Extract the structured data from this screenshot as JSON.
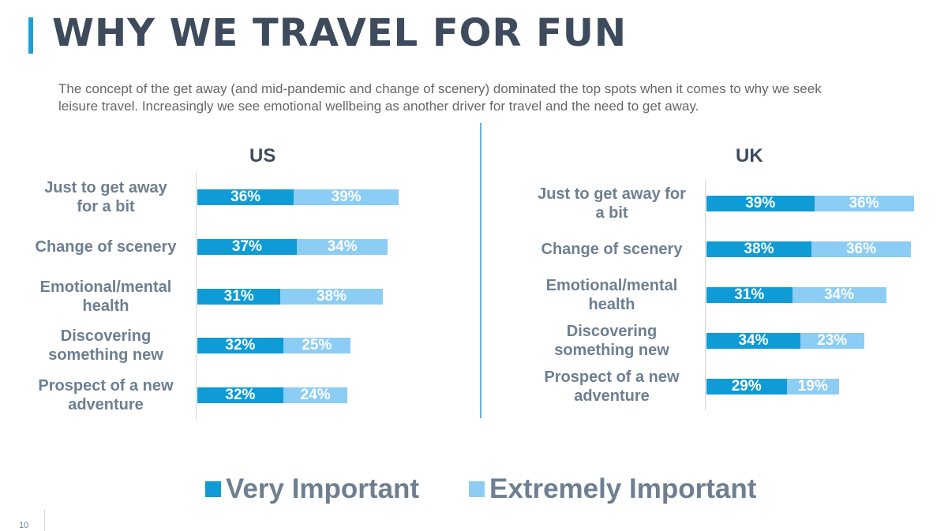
{
  "title": "WHY WE TRAVEL FOR FUN",
  "subtitle": "The concept of the get away (and mid-pandemic and change of scenery) dominated the top spots when it comes to why we seek leisure travel. Increasingly we see emotional wellbeing as another driver for travel and the need to get away.",
  "page_number": "10",
  "colors": {
    "very": "#0e9bd6",
    "extreme": "#8ccdf5",
    "title": "#3d4b5c",
    "accent": "#1ba1d8"
  },
  "legend": {
    "very_label": "Very Important",
    "extreme_label": "Extremely Important"
  },
  "chart_data": [
    {
      "type": "bar",
      "orientation": "horizontal",
      "stacked": true,
      "title": "US",
      "categories": [
        "Just to get away for a bit",
        "Change of scenery",
        "Emotional/mental health",
        "Discovering something new",
        "Prospect of a new adventure"
      ],
      "series": [
        {
          "name": "Very Important",
          "values": [
            36,
            37,
            31,
            32,
            32
          ],
          "labels": [
            "36%",
            "37%",
            "31%",
            "32%",
            "32%"
          ]
        },
        {
          "name": "Extremely Important",
          "values": [
            39,
            34,
            38,
            25,
            24
          ],
          "labels": [
            "39%",
            "34%",
            "38%",
            "25%",
            "24%"
          ]
        }
      ],
      "legend_position": "bottom",
      "grid": false
    },
    {
      "type": "bar",
      "orientation": "horizontal",
      "stacked": true,
      "title": "UK",
      "categories": [
        "Just to get away for a bit",
        "Change of scenery",
        "Emotional/mental health",
        "Discovering something new",
        "Prospect of a new adventure"
      ],
      "series": [
        {
          "name": "Very Important",
          "values": [
            39,
            38,
            31,
            34,
            29
          ],
          "labels": [
            "39%",
            "38%",
            "31%",
            "34%",
            "29%"
          ]
        },
        {
          "name": "Extremely Important",
          "values": [
            36,
            36,
            34,
            23,
            19
          ],
          "labels": [
            "36%",
            "36%",
            "34%",
            "23%",
            "19%"
          ]
        }
      ],
      "legend_position": "bottom",
      "grid": false
    }
  ]
}
